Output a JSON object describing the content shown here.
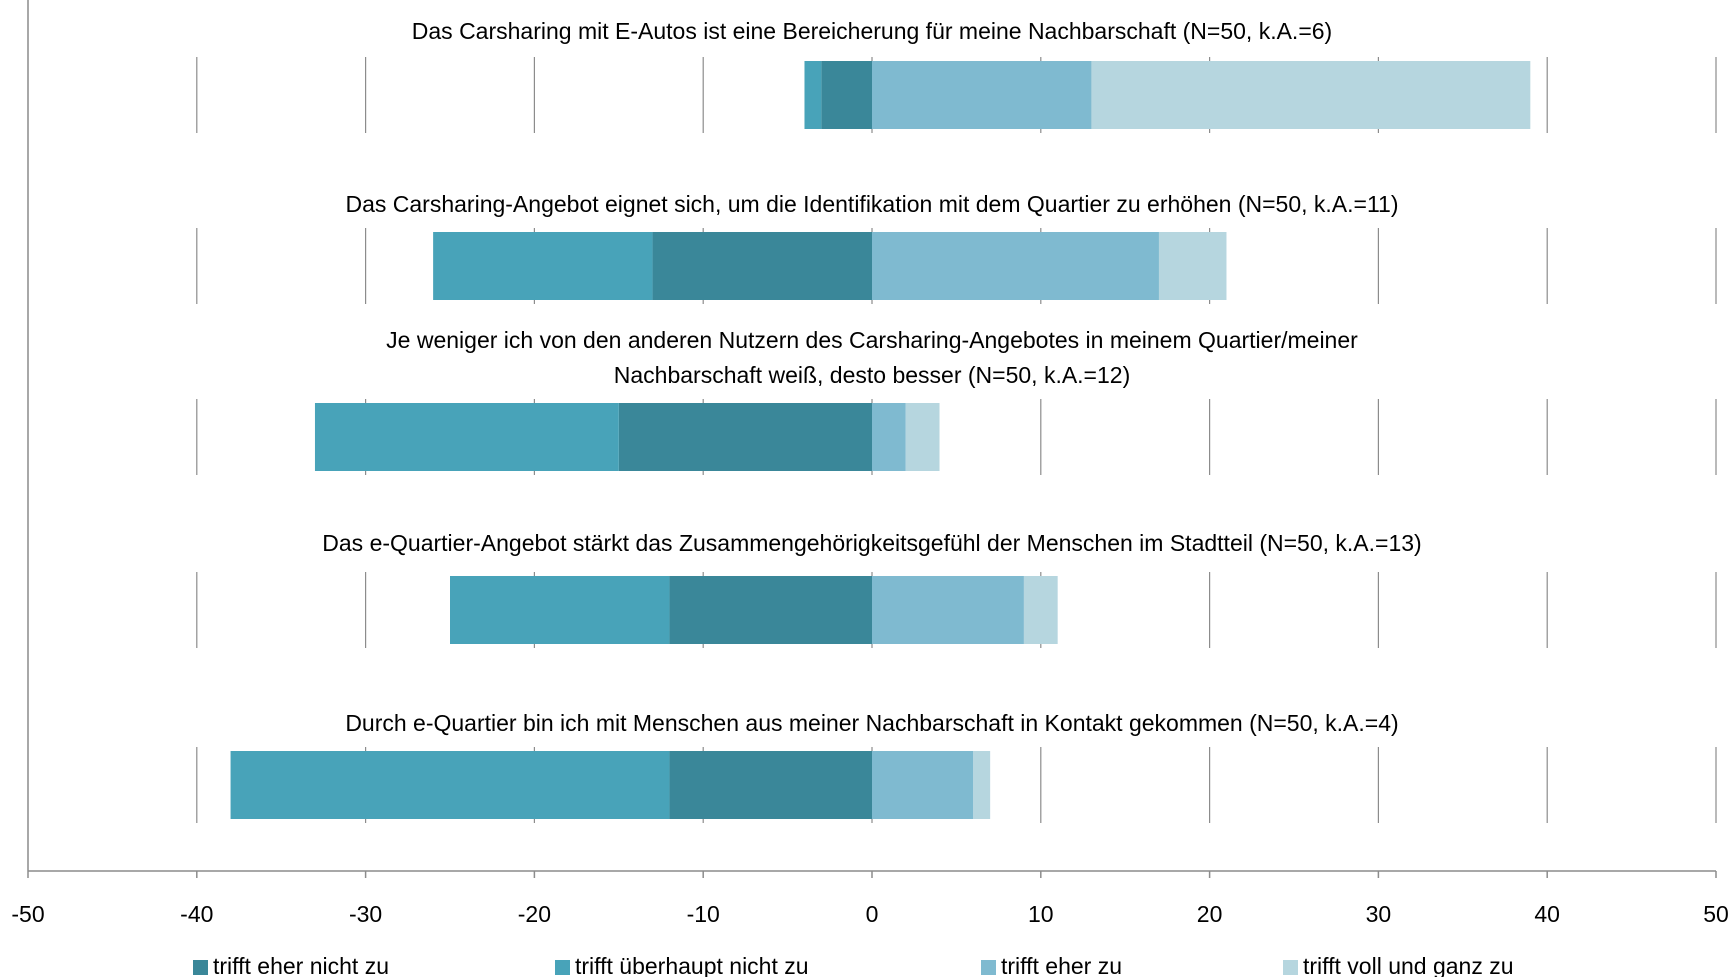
{
  "chart_data": {
    "type": "diverging_bar",
    "categories": [
      "Das Carsharing mit E-Autos ist eine Bereicherung für meine Nachbarschaft (N=50, k.A.=6)",
      "Das Carsharing-Angebot eignet sich, um die Identifikation mit dem Quartier zu erhöhen (N=50, k.A.=11)",
      "Je weniger ich von den anderen Nutzern des Carsharing-Angebotes in meinem Quartier/meiner\nNachbarschaft weiß, desto besser (N=50, k.A.=12)",
      "Das e-Quartier-Angebot stärkt das Zusammengehörigkeitsgefühl der Menschen im Stadtteil (N=50, k.A.=13)",
      "Durch e-Quartier bin ich mit Menschen aus meiner Nachbarschaft in Kontakt gekommen (N=50, k.A.=4)"
    ],
    "series": [
      {
        "name": "trifft eher nicht zu",
        "color": "#3a8799",
        "values": [
          -3,
          -13,
          -15,
          -12,
          -12
        ]
      },
      {
        "name": "trifft überhaupt nicht zu",
        "color": "#48a3b9",
        "values": [
          -1,
          -13,
          -18,
          -13,
          -26
        ]
      },
      {
        "name": "trifft eher zu",
        "color": "#7fbad0",
        "values": [
          13,
          17,
          2,
          9,
          6
        ]
      },
      {
        "name": "trifft voll und ganz zu",
        "color": "#b6d6df",
        "values": [
          26,
          4,
          2,
          2,
          1
        ]
      }
    ],
    "xlim": [
      -50,
      50
    ],
    "xticks": [
      -50,
      -40,
      -30,
      -20,
      -10,
      0,
      10,
      20,
      30,
      40,
      50
    ],
    "grid": true,
    "legend": "bottom"
  }
}
